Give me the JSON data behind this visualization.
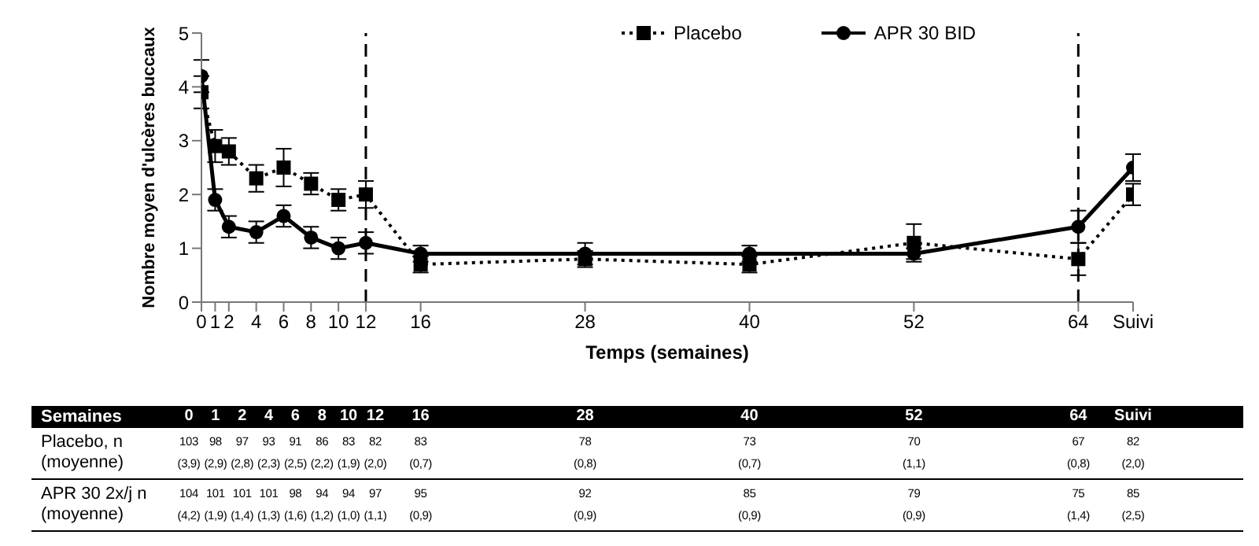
{
  "chart_data": {
    "type": "line",
    "xlabel": "Temps (semaines)",
    "ylabel": "Nombre moyen d'ulcères buccaux",
    "x": [
      0,
      1,
      2,
      4,
      6,
      8,
      10,
      12,
      16,
      28,
      40,
      52,
      64,
      68
    ],
    "series": [
      {
        "name": "Placebo",
        "color": "#000000",
        "marker": "square",
        "line_style": "dotted",
        "values": [
          3.9,
          2.9,
          2.8,
          2.3,
          2.5,
          2.2,
          1.9,
          2.0,
          0.7,
          0.8,
          0.7,
          1.1,
          0.8,
          2.0
        ],
        "errors": [
          0.3,
          0.3,
          0.25,
          0.25,
          0.35,
          0.2,
          0.2,
          0.25,
          0.15,
          0.15,
          0.15,
          0.35,
          0.3,
          0.2
        ]
      },
      {
        "name": "APR 30 BID",
        "color": "#000000",
        "marker": "circle",
        "line_style": "solid",
        "values": [
          4.2,
          1.9,
          1.4,
          1.3,
          1.6,
          1.2,
          1.0,
          1.1,
          0.9,
          0.9,
          0.9,
          0.9,
          1.4,
          2.5
        ],
        "errors": [
          0.3,
          0.2,
          0.2,
          0.2,
          0.2,
          0.2,
          0.2,
          0.2,
          0.15,
          0.2,
          0.15,
          0.1,
          0.3,
          0.25
        ]
      }
    ],
    "xlim": [
      0,
      68
    ],
    "xticks": [
      0,
      1,
      2,
      4,
      6,
      8,
      10,
      12,
      16,
      28,
      40,
      52,
      64,
      {
        "value": 68,
        "label": "Suivi"
      }
    ],
    "ylim": [
      0,
      5
    ],
    "yticks": [
      0,
      1,
      2,
      3,
      4,
      5
    ],
    "ref_lines": [
      {
        "axis": "x",
        "value": 12,
        "line_style": "dashed"
      },
      {
        "axis": "x",
        "value": 64,
        "line_style": "dashed"
      }
    ],
    "legend": "top",
    "grid": false,
    "annotations": [
      "Semaines",
      "0",
      "1",
      "2",
      "4",
      "6",
      "8",
      "10",
      "12",
      "16",
      "28",
      "40",
      "52",
      "64",
      "Suivi",
      "Placebo, n (moyenne)",
      "103",
      "98",
      "97",
      "93",
      "91",
      "86",
      "83",
      "82",
      "83",
      "78",
      "73",
      "70",
      "67",
      "82",
      "(3,9)",
      "(2,9)",
      "(2,8)",
      "(2,3)",
      "(2,5)",
      "(2,2)",
      "(1,9)",
      "(2,0)",
      "(0,7)",
      "(0,8)",
      "(0,7)",
      "(1,1)",
      "(0,8)",
      "(2,0)",
      "APR 30 2x/j n (moyenne)",
      "104",
      "101",
      "101",
      "101",
      "98",
      "94",
      "94",
      "97",
      "95",
      "92",
      "85",
      "79",
      "75",
      "85",
      "(4,2)",
      "(1,9)",
      "(1,4)",
      "(1,3)",
      "(1,6)",
      "(1,2)",
      "(1,0)",
      "(1,1)",
      "(0,9)",
      "(0,9)",
      "(0,9)",
      "(0,9)",
      "(1,4)",
      "(2,5)"
    ]
  }
}
